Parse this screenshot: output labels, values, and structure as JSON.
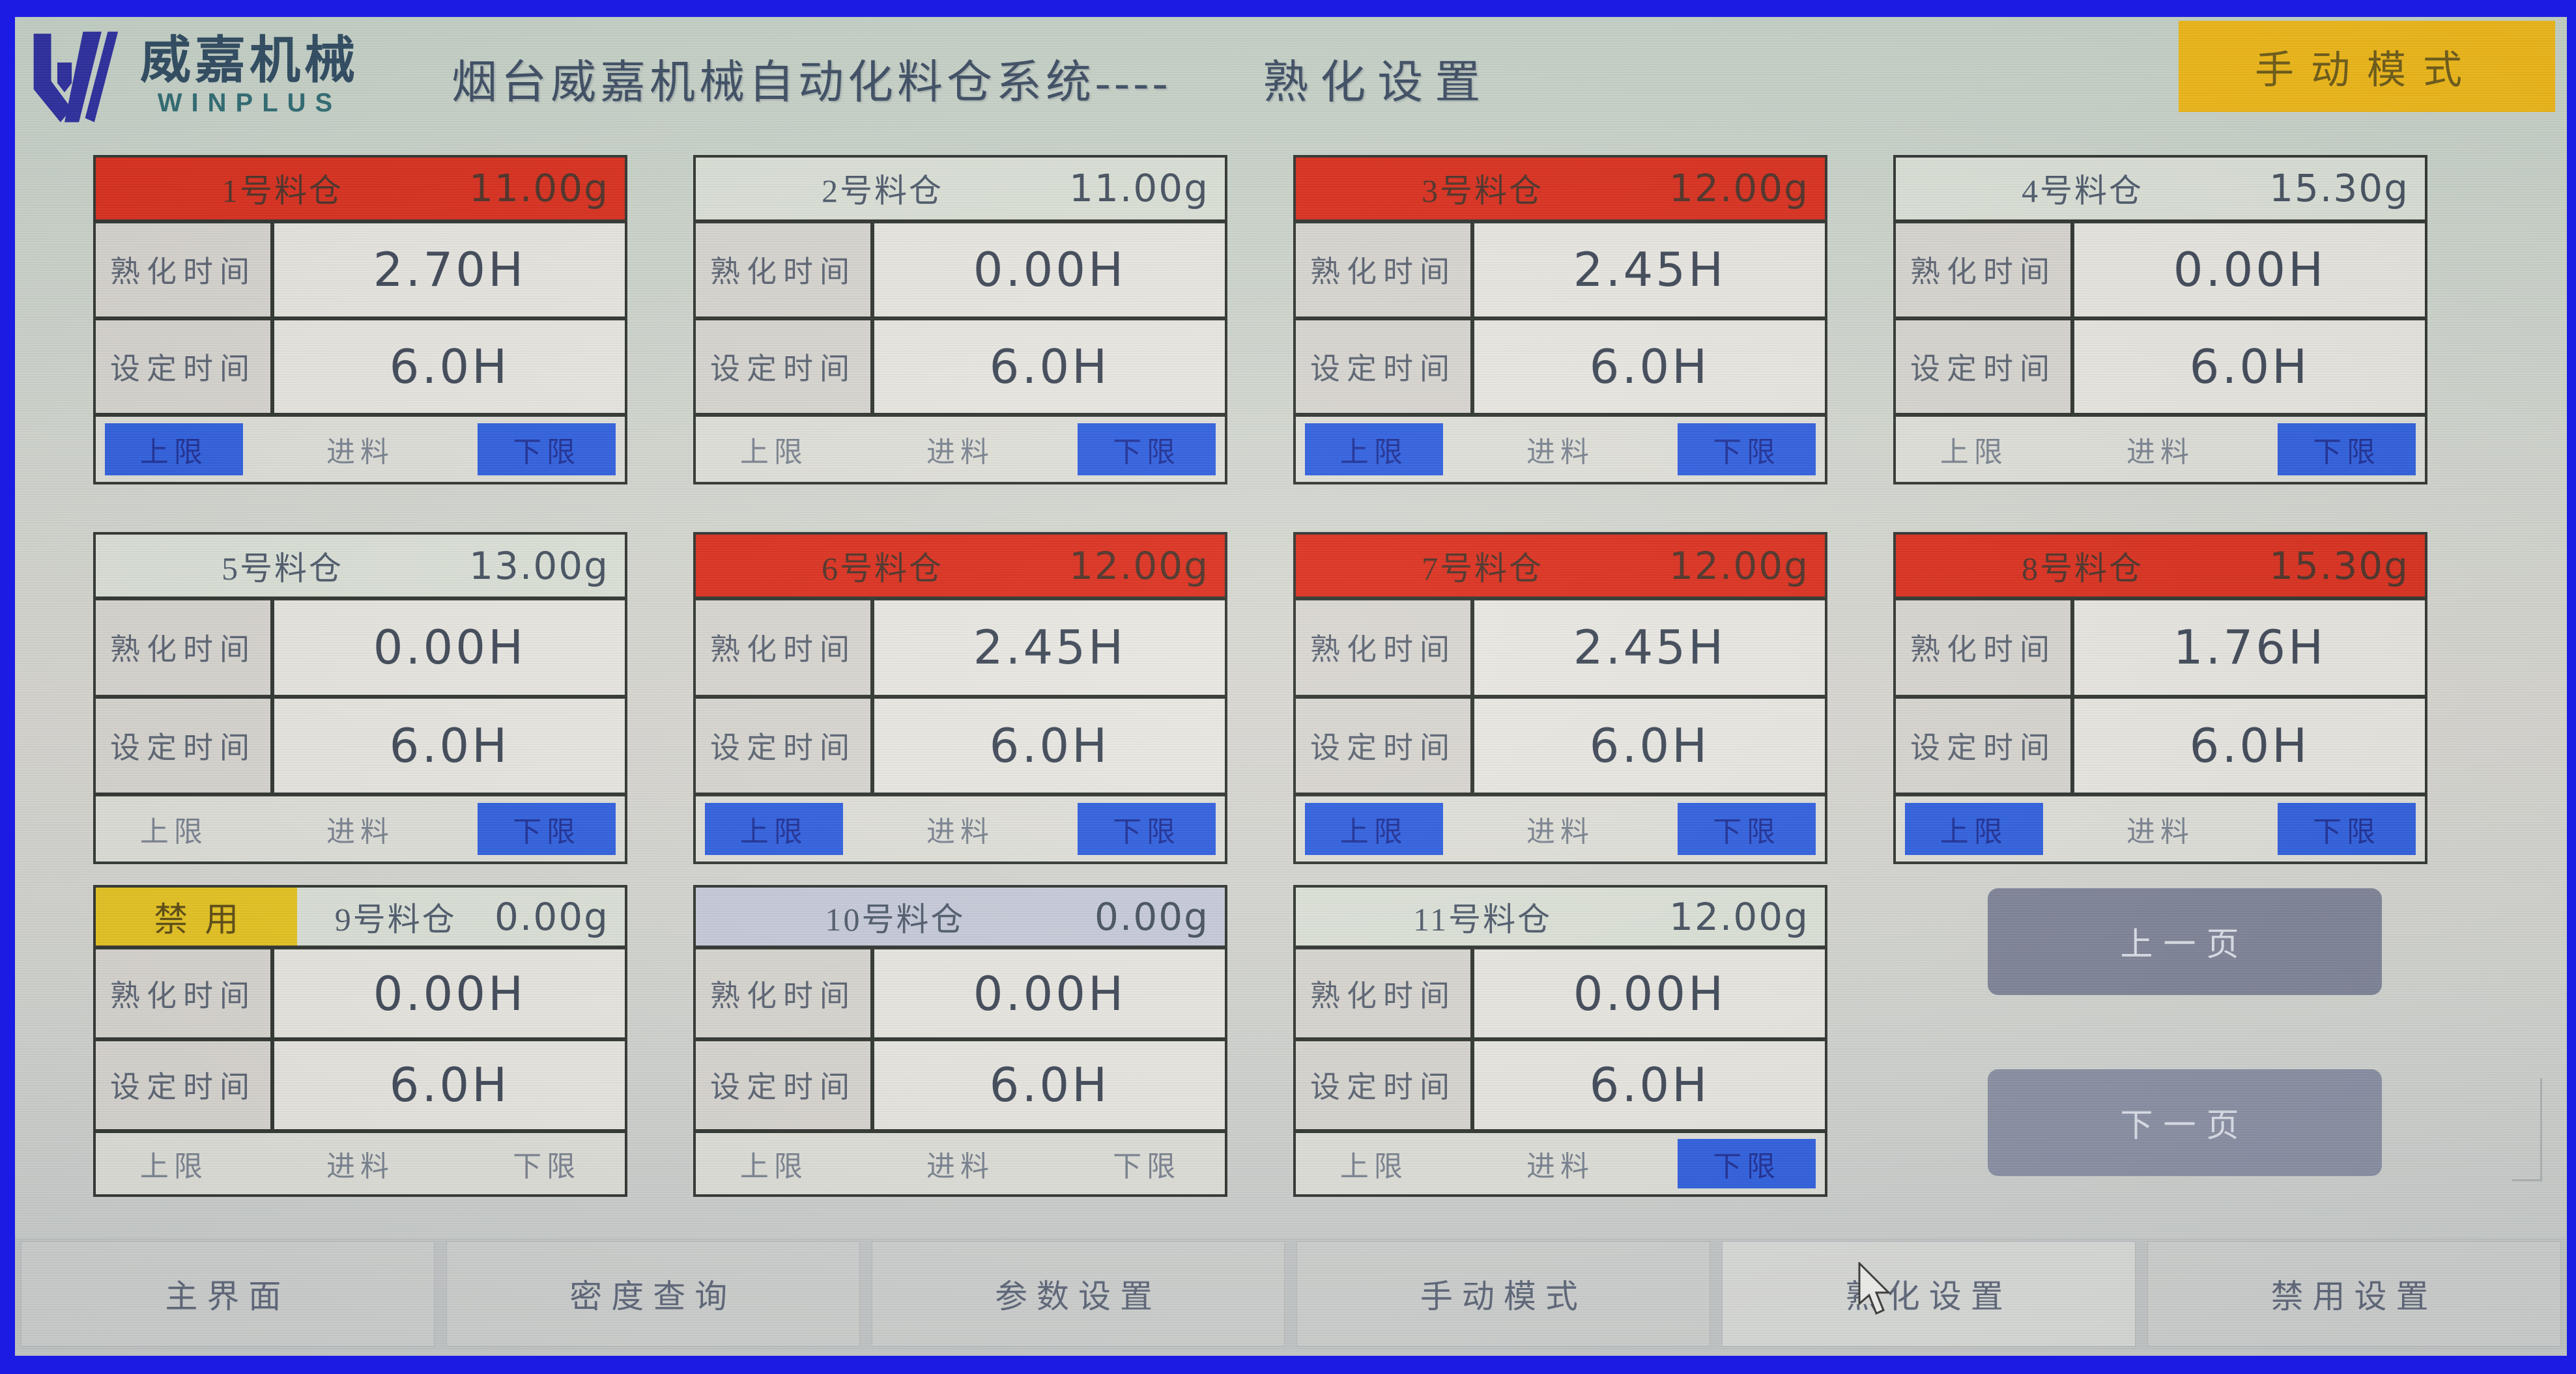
{
  "header": {
    "logo_brand": "威嘉机械",
    "logo_sub": "WINPLUS",
    "title_main": "烟台威嘉机械自动化料仓系统----",
    "title_page": "熟化设置",
    "mode_badge": "手动模式"
  },
  "labels": {
    "aging": "熟化时间",
    "set": "设定时间",
    "upper": "上限",
    "feed": "进料",
    "lower": "下限",
    "disabled": "禁用"
  },
  "silos": [
    {
      "name": "1号料仓",
      "weight": "11.00g",
      "aging": "2.70H",
      "set": "6.0H",
      "header": "red",
      "disabled": false,
      "upper": true,
      "feed": false,
      "lower": true
    },
    {
      "name": "2号料仓",
      "weight": "11.00g",
      "aging": "0.00H",
      "set": "6.0H",
      "header": "plain",
      "disabled": false,
      "upper": false,
      "feed": false,
      "lower": true
    },
    {
      "name": "3号料仓",
      "weight": "12.00g",
      "aging": "2.45H",
      "set": "6.0H",
      "header": "red",
      "disabled": false,
      "upper": true,
      "feed": false,
      "lower": true
    },
    {
      "name": "4号料仓",
      "weight": "15.30g",
      "aging": "0.00H",
      "set": "6.0H",
      "header": "plain",
      "disabled": false,
      "upper": false,
      "feed": false,
      "lower": true
    },
    {
      "name": "5号料仓",
      "weight": "13.00g",
      "aging": "0.00H",
      "set": "6.0H",
      "header": "plain",
      "disabled": false,
      "upper": false,
      "feed": false,
      "lower": true
    },
    {
      "name": "6号料仓",
      "weight": "12.00g",
      "aging": "2.45H",
      "set": "6.0H",
      "header": "red",
      "disabled": false,
      "upper": true,
      "feed": false,
      "lower": true
    },
    {
      "name": "7号料仓",
      "weight": "12.00g",
      "aging": "2.45H",
      "set": "6.0H",
      "header": "red",
      "disabled": false,
      "upper": true,
      "feed": false,
      "lower": true
    },
    {
      "name": "8号料仓",
      "weight": "15.30g",
      "aging": "1.76H",
      "set": "6.0H",
      "header": "red",
      "disabled": false,
      "upper": true,
      "feed": false,
      "lower": true
    },
    {
      "name": "9号料仓",
      "weight": "0.00g",
      "aging": "0.00H",
      "set": "6.0H",
      "header": "plain",
      "disabled": true,
      "upper": false,
      "feed": false,
      "lower": false
    },
    {
      "name": "10号料仓",
      "weight": "0.00g",
      "aging": "0.00H",
      "set": "6.0H",
      "header": "lavender",
      "disabled": false,
      "upper": false,
      "feed": false,
      "lower": false
    },
    {
      "name": "11号料仓",
      "weight": "12.00g",
      "aging": "0.00H",
      "set": "6.0H",
      "header": "plain",
      "disabled": false,
      "upper": false,
      "feed": false,
      "lower": true
    }
  ],
  "pager": {
    "prev": "上一页",
    "next": "下一页"
  },
  "menu": {
    "items": [
      "主界面",
      "密度查询",
      "参数设置",
      "手动模式",
      "熟化设置",
      "禁用设置"
    ],
    "active": "熟化设置"
  },
  "colors": {
    "frame_blue": "#1b1be4",
    "alarm_red": "#dc2e1c",
    "active_blue": "#2f5fe0",
    "disabled_yellow": "#e7c41f",
    "badge_yellow": "#f1b916"
  }
}
